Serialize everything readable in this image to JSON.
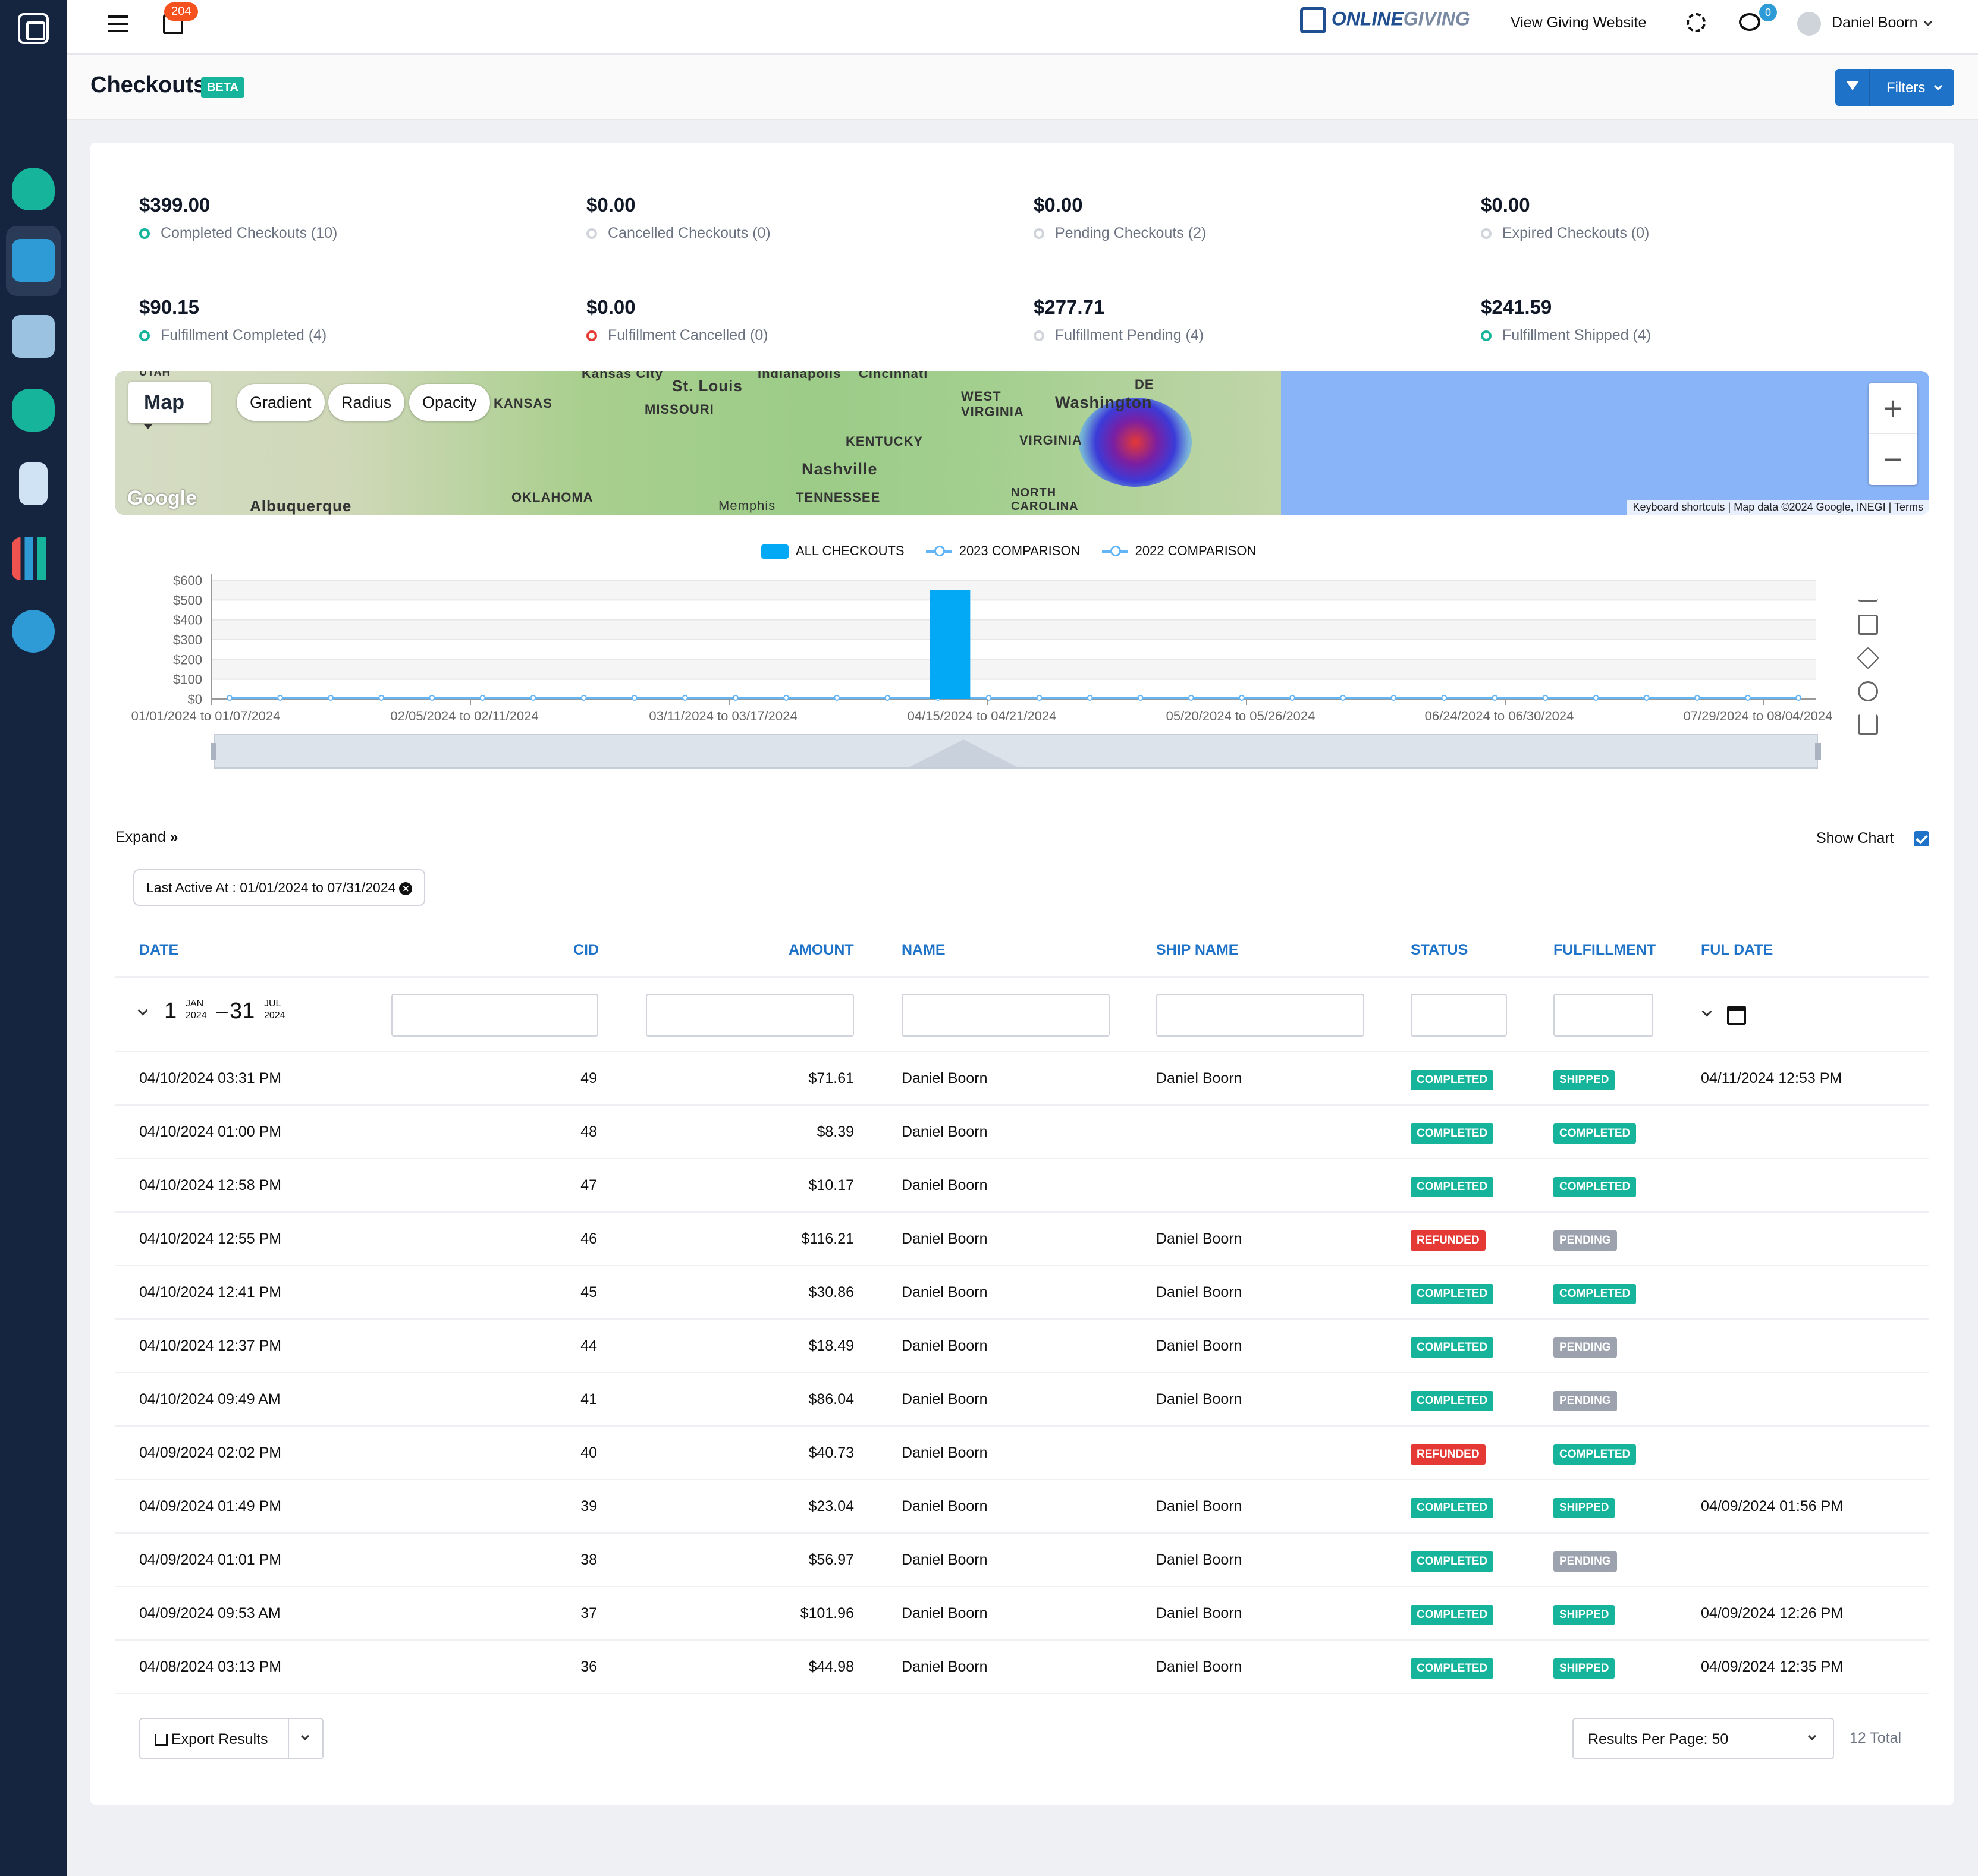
{
  "topbar": {
    "notifications_count": "204",
    "brand_a": "ONLINE",
    "brand_b": "GIVING",
    "view_site": "View Giving Website",
    "messages_count": "0",
    "user_name": "Daniel Boorn"
  },
  "page": {
    "title": "Checkouts",
    "badge": "BETA",
    "filters_label": "Filters"
  },
  "stats": [
    {
      "value": "$399.00",
      "label": "Completed Checkouts (10)"
    },
    {
      "value": "$0.00",
      "label": "Cancelled Checkouts (0)"
    },
    {
      "value": "$0.00",
      "label": "Pending Checkouts (2)"
    },
    {
      "value": "$0.00",
      "label": "Expired Checkouts (0)"
    },
    {
      "value": "$90.15",
      "label": "Fulfillment Completed (4)"
    },
    {
      "value": "$0.00",
      "label": "Fulfillment Cancelled (0)"
    },
    {
      "value": "$277.71",
      "label": "Fulfillment Pending (4)"
    },
    {
      "value": "$241.59",
      "label": "Fulfillment Shipped (4)"
    }
  ],
  "map": {
    "type_label": "Map",
    "gradient": "Gradient",
    "radius": "Radius",
    "opacity": "Opacity",
    "attribution": "Keyboard shortcuts | Map data ©2024 Google, INEGI | Terms",
    "google": "Google",
    "labels": [
      "Kansas City",
      "St. Louis",
      "Indianapolis",
      "Cincinnati",
      "MISSOURI",
      "KANSAS",
      "KENTUCKY",
      "WEST VIRGINIA",
      "VIRGINIA",
      "Washington",
      "DE",
      "Nashville",
      "TENNESSEE",
      "Memphis",
      "OKLAHOMA",
      "Albuquerque",
      "NORTH CAROLINA",
      "UTAH"
    ]
  },
  "chart_data": {
    "type": "bar",
    "legend": [
      "ALL CHECKOUTS",
      "2023 COMPARISON",
      "2022 COMPARISON"
    ],
    "y_ticks": [
      "$0",
      "$100",
      "$200",
      "$300",
      "$400",
      "$500",
      "$600"
    ],
    "ylim": [
      0,
      600
    ],
    "x_tick_labels": [
      "01/01/2024 to 01/07/2024",
      "02/05/2024 to 02/11/2024",
      "03/11/2024 to 03/17/2024",
      "04/15/2024 to 04/21/2024",
      "05/20/2024 to 05/26/2024",
      "06/24/2024 to 06/30/2024",
      "07/29/2024 to 08/04/2024"
    ],
    "num_weeks": 32,
    "bar_week_index": 14,
    "bar_value": 550,
    "series": [
      {
        "name": "ALL CHECKOUTS",
        "values": [
          0,
          0,
          0,
          0,
          0,
          0,
          0,
          0,
          0,
          0,
          0,
          0,
          0,
          0,
          550,
          0,
          0,
          0,
          0,
          0,
          0,
          0,
          0,
          0,
          0,
          0,
          0,
          0,
          0,
          0,
          0,
          0
        ]
      }
    ],
    "grid": true,
    "legend_position": "top-center"
  },
  "controls": {
    "expand": "Expand",
    "show_chart": "Show Chart",
    "filter_chip": "Last Active At : 01/01/2024 to 07/31/2024"
  },
  "table": {
    "headers": [
      "DATE",
      "CID",
      "AMOUNT",
      "NAME",
      "SHIP NAME",
      "STATUS",
      "FULFILLMENT",
      "FUL DATE"
    ],
    "date_range": {
      "start_day": "1",
      "start_mon": "JAN",
      "start_yr": "2024",
      "end_day": "31",
      "end_mon": "JUL",
      "end_yr": "2024"
    },
    "rows": [
      {
        "date": "04/10/2024 03:31 PM",
        "cid": "49",
        "amount": "$71.61",
        "name": "Daniel Boorn",
        "ship": "Daniel Boorn",
        "status": "COMPLETED",
        "ful": "SHIPPED",
        "fdate": "04/11/2024 12:53 PM"
      },
      {
        "date": "04/10/2024 01:00 PM",
        "cid": "48",
        "amount": "$8.39",
        "name": "Daniel Boorn",
        "ship": "",
        "status": "COMPLETED",
        "ful": "COMPLETED",
        "fdate": ""
      },
      {
        "date": "04/10/2024 12:58 PM",
        "cid": "47",
        "amount": "$10.17",
        "name": "Daniel Boorn",
        "ship": "",
        "status": "COMPLETED",
        "ful": "COMPLETED",
        "fdate": ""
      },
      {
        "date": "04/10/2024 12:55 PM",
        "cid": "46",
        "amount": "$116.21",
        "name": "Daniel Boorn",
        "ship": "Daniel Boorn",
        "status": "REFUNDED",
        "ful": "PENDING",
        "fdate": ""
      },
      {
        "date": "04/10/2024 12:41 PM",
        "cid": "45",
        "amount": "$30.86",
        "name": "Daniel Boorn",
        "ship": "Daniel Boorn",
        "status": "COMPLETED",
        "ful": "COMPLETED",
        "fdate": ""
      },
      {
        "date": "04/10/2024 12:37 PM",
        "cid": "44",
        "amount": "$18.49",
        "name": "Daniel Boorn",
        "ship": "Daniel Boorn",
        "status": "COMPLETED",
        "ful": "PENDING",
        "fdate": ""
      },
      {
        "date": "04/10/2024 09:49 AM",
        "cid": "41",
        "amount": "$86.04",
        "name": "Daniel Boorn",
        "ship": "Daniel Boorn",
        "status": "COMPLETED",
        "ful": "PENDING",
        "fdate": ""
      },
      {
        "date": "04/09/2024 02:02 PM",
        "cid": "40",
        "amount": "$40.73",
        "name": "Daniel Boorn",
        "ship": "",
        "status": "REFUNDED",
        "ful": "COMPLETED",
        "fdate": ""
      },
      {
        "date": "04/09/2024 01:49 PM",
        "cid": "39",
        "amount": "$23.04",
        "name": "Daniel Boorn",
        "ship": "Daniel Boorn",
        "status": "COMPLETED",
        "ful": "SHIPPED",
        "fdate": "04/09/2024 01:56 PM"
      },
      {
        "date": "04/09/2024 01:01 PM",
        "cid": "38",
        "amount": "$56.97",
        "name": "Daniel Boorn",
        "ship": "Daniel Boorn",
        "status": "COMPLETED",
        "ful": "PENDING",
        "fdate": ""
      },
      {
        "date": "04/09/2024 09:53 AM",
        "cid": "37",
        "amount": "$101.96",
        "name": "Daniel Boorn",
        "ship": "Daniel Boorn",
        "status": "COMPLETED",
        "ful": "SHIPPED",
        "fdate": "04/09/2024 12:26 PM"
      },
      {
        "date": "04/08/2024 03:13 PM",
        "cid": "36",
        "amount": "$44.98",
        "name": "Daniel Boorn",
        "ship": "Daniel Boorn",
        "status": "COMPLETED",
        "ful": "SHIPPED",
        "fdate": "04/09/2024 12:35 PM"
      }
    ]
  },
  "footer": {
    "export": "Export Results",
    "rpp": "Results Per Page: 50",
    "total": "12 Total"
  }
}
